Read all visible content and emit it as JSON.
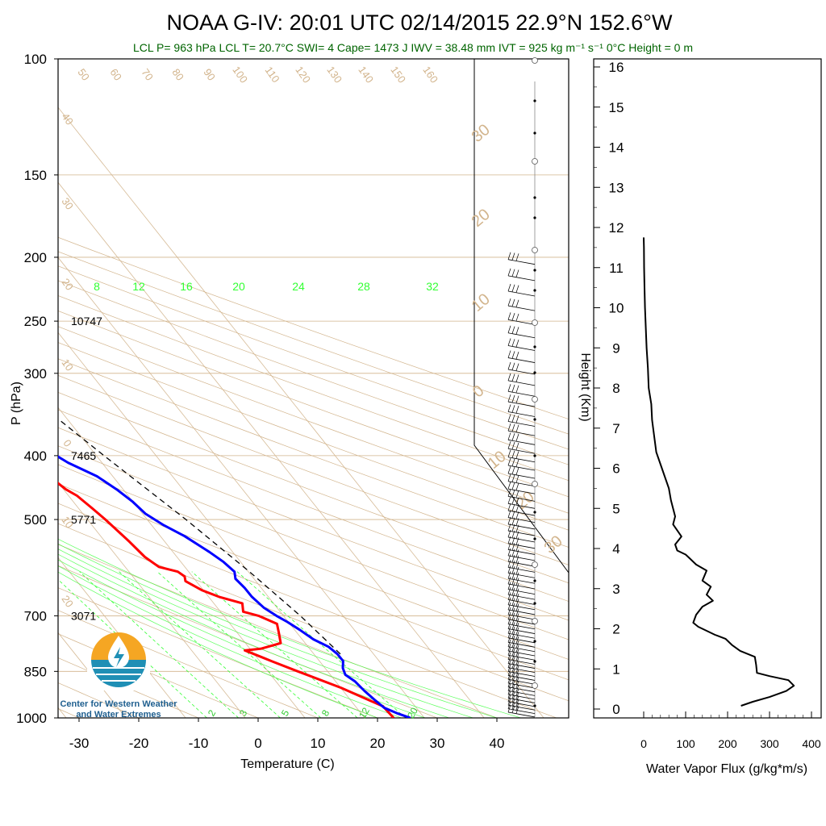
{
  "title": "NOAA G-IV: 20:01 UTC 02/14/2015  22.9°N 152.6°W",
  "subtitle": "LCL P= 963 hPa  LCL T= 20.7°C  SWI= 4  Cape= 1473 J  IWV = 38.48 mm  IVT = 925 kg m⁻¹ s⁻¹  0°C Height = 0 m",
  "logo": {
    "line1": "Center for Western Weather",
    "line2": "and Water Extremes",
    "icon": "water-drop-logo-icon"
  },
  "colors": {
    "temperature": "#ff0000",
    "dewpoint": "#0000ff",
    "parcel": "#000000",
    "isotherm": "#d2b48c",
    "mixing": "#33ff33",
    "flux": "#000000"
  },
  "chart_data": [
    {
      "type": "line",
      "name": "skew-t",
      "xlabel": "Temperature (C)",
      "ylabel": "P (hPa)",
      "ylim": [
        1000,
        100
      ],
      "xlim": [
        -33,
        43
      ],
      "y_scale": "log",
      "pressure_ticks": [
        100,
        150,
        200,
        250,
        300,
        400,
        500,
        700,
        850,
        1000
      ],
      "temperature_ticks": [
        -30,
        -20,
        -10,
        0,
        10,
        20,
        30,
        40
      ],
      "height_labels": [
        {
          "p": 250,
          "label": "10747"
        },
        {
          "p": 400,
          "label": "7465"
        },
        {
          "p": 500,
          "label": "5771"
        },
        {
          "p": 700,
          "label": "3071"
        }
      ],
      "mixing_ratio_labels_top": [
        "8",
        "12",
        "16",
        "20",
        "24",
        "28",
        "32"
      ],
      "mixing_ratio_labels_bottom": [
        "2",
        "3",
        "5",
        "8",
        "12",
        "20"
      ],
      "isotherm_labels_top": [
        "50",
        "60",
        "70",
        "80",
        "90",
        "100",
        "110",
        "120",
        "130",
        "140",
        "150",
        "160"
      ],
      "adiabat_labels_left": [
        "40",
        "30",
        "20",
        "10",
        "0",
        "10",
        "20"
      ],
      "adiabat_labels_right": [
        "30",
        "20",
        "10",
        "0",
        "10",
        "20",
        "30"
      ],
      "series": [
        {
          "name": "Temperature",
          "points": [
            [
              22.7,
              1000
            ],
            [
              22.5,
              960
            ],
            [
              21.0,
              940
            ],
            [
              18.0,
              900
            ],
            [
              13.0,
              850
            ],
            [
              10.0,
              820
            ],
            [
              9.0,
              810
            ],
            [
              7.0,
              790
            ],
            [
              10.0,
              785
            ],
            [
              14.0,
              770
            ],
            [
              15.0,
              745
            ],
            [
              16.0,
              720
            ],
            [
              14.0,
              700
            ],
            [
              12.0,
              690
            ],
            [
              13.0,
              670
            ],
            [
              10.0,
              655
            ],
            [
              8.0,
              640
            ],
            [
              6.5,
              620
            ],
            [
              7.0,
              610
            ],
            [
              6.5,
              600
            ],
            [
              4.0,
              590
            ],
            [
              3.0,
              570
            ],
            [
              2.5,
              540
            ],
            [
              1.5,
              500
            ],
            [
              0.8,
              480
            ],
            [
              0.0,
              460
            ],
            [
              -1.0,
              450
            ],
            [
              -2.0,
              430
            ],
            [
              -2.5,
              410
            ],
            [
              -2.0,
              390
            ],
            [
              -4.0,
              370
            ],
            [
              -5.0,
              355
            ],
            [
              -6.0,
              345
            ],
            [
              -8.0,
              340
            ],
            [
              -9.0,
              330
            ],
            [
              -9.0,
              315
            ],
            [
              -11.0,
              305
            ],
            [
              -11.0,
              295
            ],
            [
              -12.0,
              280
            ],
            [
              -15.0,
              270
            ],
            [
              -18.0,
              255
            ],
            [
              -21.0,
              240
            ],
            [
              -23.0,
              222
            ],
            [
              -24.0,
              210
            ],
            [
              -24.0,
              201
            ]
          ]
        },
        {
          "name": "Dewpoint",
          "points": [
            [
              25.5,
              1000
            ],
            [
              24.0,
              985
            ],
            [
              22.5,
              965
            ],
            [
              22.0,
              940
            ],
            [
              21.5,
              910
            ],
            [
              21.2,
              880
            ],
            [
              20.5,
              860
            ],
            [
              21.0,
              840
            ],
            [
              22.0,
              820
            ],
            [
              22.0,
              800
            ],
            [
              21.5,
              780
            ],
            [
              20.0,
              760
            ],
            [
              19.0,
              735
            ],
            [
              18.0,
              715
            ],
            [
              17.0,
              700
            ],
            [
              16.0,
              680
            ],
            [
              15.5,
              655
            ],
            [
              15.5,
              635
            ],
            [
              15.2,
              615
            ],
            [
              16.0,
              600
            ],
            [
              15.5,
              580
            ],
            [
              14.5,
              560
            ],
            [
              12.5,
              530
            ],
            [
              10.5,
              510
            ],
            [
              9.0,
              490
            ],
            [
              8.5,
              470
            ],
            [
              7.5,
              450
            ],
            [
              6.0,
              430
            ],
            [
              3.0,
              410
            ],
            [
              1.0,
              390
            ],
            [
              -1.0,
              365
            ],
            [
              -2.5,
              345
            ],
            [
              -4.5,
              320
            ],
            [
              -7.0,
              300
            ],
            [
              -9.5,
              280
            ],
            [
              -12.0,
              262
            ],
            [
              -14.0,
              248
            ],
            [
              -15.5,
              235
            ],
            [
              -16.5,
              222
            ],
            [
              -17.0,
              210
            ],
            [
              -17.5,
              201
            ]
          ]
        },
        {
          "name": "Parcel",
          "points": [
            [
              22.5,
              800
            ],
            [
              21.0,
              700
            ],
            [
              18.5,
              600
            ],
            [
              15.0,
              500
            ],
            [
              10.0,
              400
            ],
            [
              4.0,
              300
            ],
            [
              -1.0,
              250
            ],
            [
              -8.0,
              200
            ]
          ]
        }
      ]
    },
    {
      "type": "line",
      "name": "water-vapor-flux",
      "xlabel": "Water Vapor Flux (g/kg*m/s)",
      "ylabel": "Height (Km)",
      "xlim": [
        0,
        400
      ],
      "ylim": [
        0,
        16
      ],
      "x_ticks": [
        0,
        100,
        200,
        300,
        400
      ],
      "y_ticks": [
        0,
        1,
        2,
        3,
        4,
        5,
        6,
        7,
        8,
        9,
        10,
        11,
        12,
        13,
        14,
        15,
        16
      ],
      "series": [
        {
          "name": "Flux",
          "points": [
            [
              232,
              0.08
            ],
            [
              260,
              0.18
            ],
            [
              300,
              0.3
            ],
            [
              340,
              0.45
            ],
            [
              358,
              0.58
            ],
            [
              345,
              0.72
            ],
            [
              300,
              0.82
            ],
            [
              270,
              0.9
            ],
            [
              268,
              1.1
            ],
            [
              265,
              1.3
            ],
            [
              230,
              1.45
            ],
            [
              210,
              1.6
            ],
            [
              195,
              1.75
            ],
            [
              170,
              1.85
            ],
            [
              150,
              1.95
            ],
            [
              130,
              2.05
            ],
            [
              118,
              2.15
            ],
            [
              125,
              2.35
            ],
            [
              140,
              2.55
            ],
            [
              165,
              2.7
            ],
            [
              150,
              2.85
            ],
            [
              160,
              3.05
            ],
            [
              140,
              3.2
            ],
            [
              150,
              3.45
            ],
            [
              125,
              3.6
            ],
            [
              110,
              3.75
            ],
            [
              100,
              3.85
            ],
            [
              80,
              3.95
            ],
            [
              75,
              4.1
            ],
            [
              90,
              4.3
            ],
            [
              80,
              4.45
            ],
            [
              70,
              4.6
            ],
            [
              75,
              4.8
            ],
            [
              70,
              5.0
            ],
            [
              65,
              5.2
            ],
            [
              60,
              5.5
            ],
            [
              50,
              5.8
            ],
            [
              40,
              6.1
            ],
            [
              30,
              6.4
            ],
            [
              25,
              6.8
            ],
            [
              20,
              7.2
            ],
            [
              18,
              7.6
            ],
            [
              12,
              8.0
            ],
            [
              10,
              8.5
            ],
            [
              7,
              9.0
            ],
            [
              5,
              9.5
            ],
            [
              3,
              10.0
            ],
            [
              2,
              10.5
            ],
            [
              1,
              11.0
            ],
            [
              0.5,
              11.5
            ],
            [
              0,
              11.75
            ]
          ]
        }
      ]
    }
  ]
}
